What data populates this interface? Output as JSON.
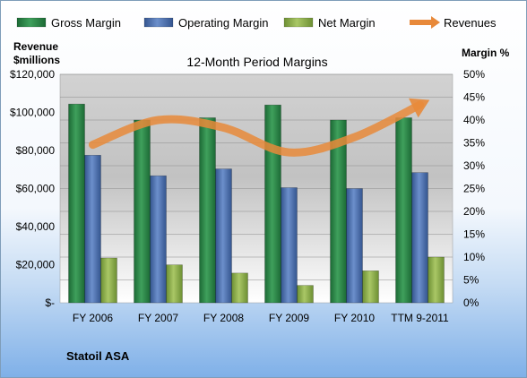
{
  "chart_data": {
    "type": "bar",
    "title": "12-Month Period Margins",
    "company": "Statoil ASA",
    "categories": [
      "FY 2006",
      "FY 2007",
      "FY 2008",
      "FY 2009",
      "FY 2010",
      "TTM 9-2011"
    ],
    "left_axis": {
      "label_line1": "Revenue",
      "label_line2": "$millions",
      "range": [
        0,
        120000
      ],
      "ticks": [
        "$-",
        "$20,000",
        "$40,000",
        "$60,000",
        "$80,000",
        "$100,000",
        "$120,000"
      ]
    },
    "right_axis": {
      "label": "Margin %",
      "range": [
        0,
        50
      ],
      "ticks": [
        "0%",
        "5%",
        "10%",
        "15%",
        "20%",
        "25%",
        "30%",
        "35%",
        "40%",
        "45%",
        "50%"
      ]
    },
    "series": [
      {
        "name": "Gross Margin",
        "axis": "right",
        "color": "#2e8b4a",
        "values": [
          43.5,
          40,
          40.5,
          43.3,
          40,
          40.5
        ]
      },
      {
        "name": "Operating Margin",
        "axis": "right",
        "color": "#4f73b0",
        "values": [
          32.3,
          27.8,
          29.3,
          25.2,
          25,
          28.5
        ]
      },
      {
        "name": "Net Margin",
        "axis": "right",
        "color": "#8fb04a",
        "values": [
          9.8,
          8.3,
          6.5,
          3.8,
          7,
          10
        ]
      },
      {
        "name": "Revenues",
        "axis": "left",
        "type": "line",
        "color": "#e8893a",
        "values": [
          83000,
          96000,
          92000,
          79000,
          87000,
          104000
        ]
      }
    ],
    "legend_position": "top",
    "grid": true
  }
}
